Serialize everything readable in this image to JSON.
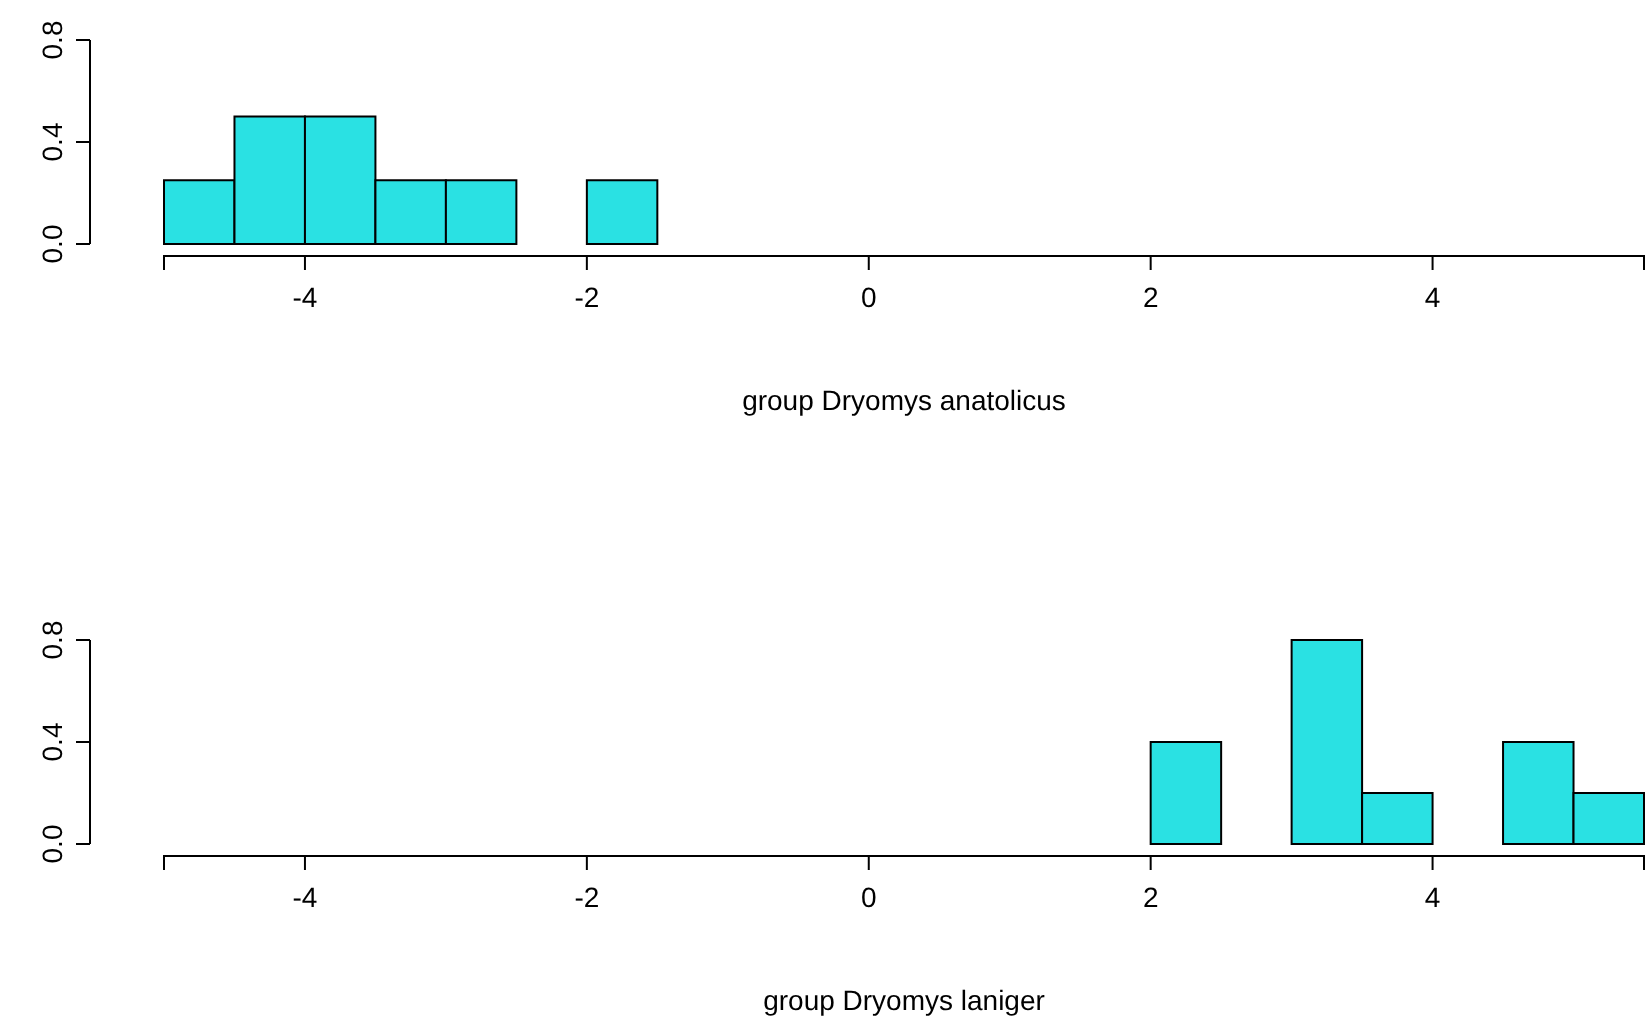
{
  "chart_data": [
    {
      "type": "histogram",
      "xlabel": "group Dryomys anatolicus",
      "bins": [
        -5,
        -4.5,
        -4,
        -3.5,
        -3,
        -2.5,
        -2,
        -1.5,
        -1,
        -0.5,
        0,
        0.5,
        1,
        1.5,
        2,
        2.5,
        3,
        3.5,
        4,
        4.5,
        5,
        5.5
      ],
      "values": [
        0.25,
        0.5,
        0.5,
        0.25,
        0.25,
        0,
        0.25,
        0,
        0,
        0,
        0,
        0,
        0,
        0,
        0,
        0,
        0,
        0,
        0,
        0,
        0
      ],
      "color": "#2ae1e3",
      "xlim": [
        -5,
        5.5
      ],
      "ylim": [
        0,
        0.8
      ],
      "xticks": [
        -4,
        -2,
        0,
        2,
        4
      ],
      "yticks": [
        {
          "value": 0,
          "label": "0.0"
        },
        {
          "value": 0.4,
          "label": "0.4"
        },
        {
          "value": 0.8,
          "label": "0.8"
        }
      ],
      "grid": false
    },
    {
      "type": "histogram",
      "xlabel": "group Dryomys laniger",
      "bins": [
        -5,
        -4.5,
        -4,
        -3.5,
        -3,
        -2.5,
        -2,
        -1.5,
        -1,
        -0.5,
        0,
        0.5,
        1,
        1.5,
        2,
        2.5,
        3,
        3.5,
        4,
        4.5,
        5,
        5.5
      ],
      "values": [
        0,
        0,
        0,
        0,
        0,
        0,
        0,
        0,
        0,
        0,
        0,
        0,
        0,
        0,
        0.4,
        0,
        0.8,
        0.2,
        0,
        0.4,
        0.2
      ],
      "color": "#2ae1e3",
      "xlim": [
        -5,
        5.5
      ],
      "ylim": [
        0,
        0.8
      ],
      "xticks": [
        -4,
        -2,
        0,
        2,
        4
      ],
      "yticks": [
        {
          "value": 0,
          "label": "0.0"
        },
        {
          "value": 0.4,
          "label": "0.4"
        },
        {
          "value": 0.8,
          "label": "0.8"
        }
      ],
      "grid": false
    }
  ]
}
